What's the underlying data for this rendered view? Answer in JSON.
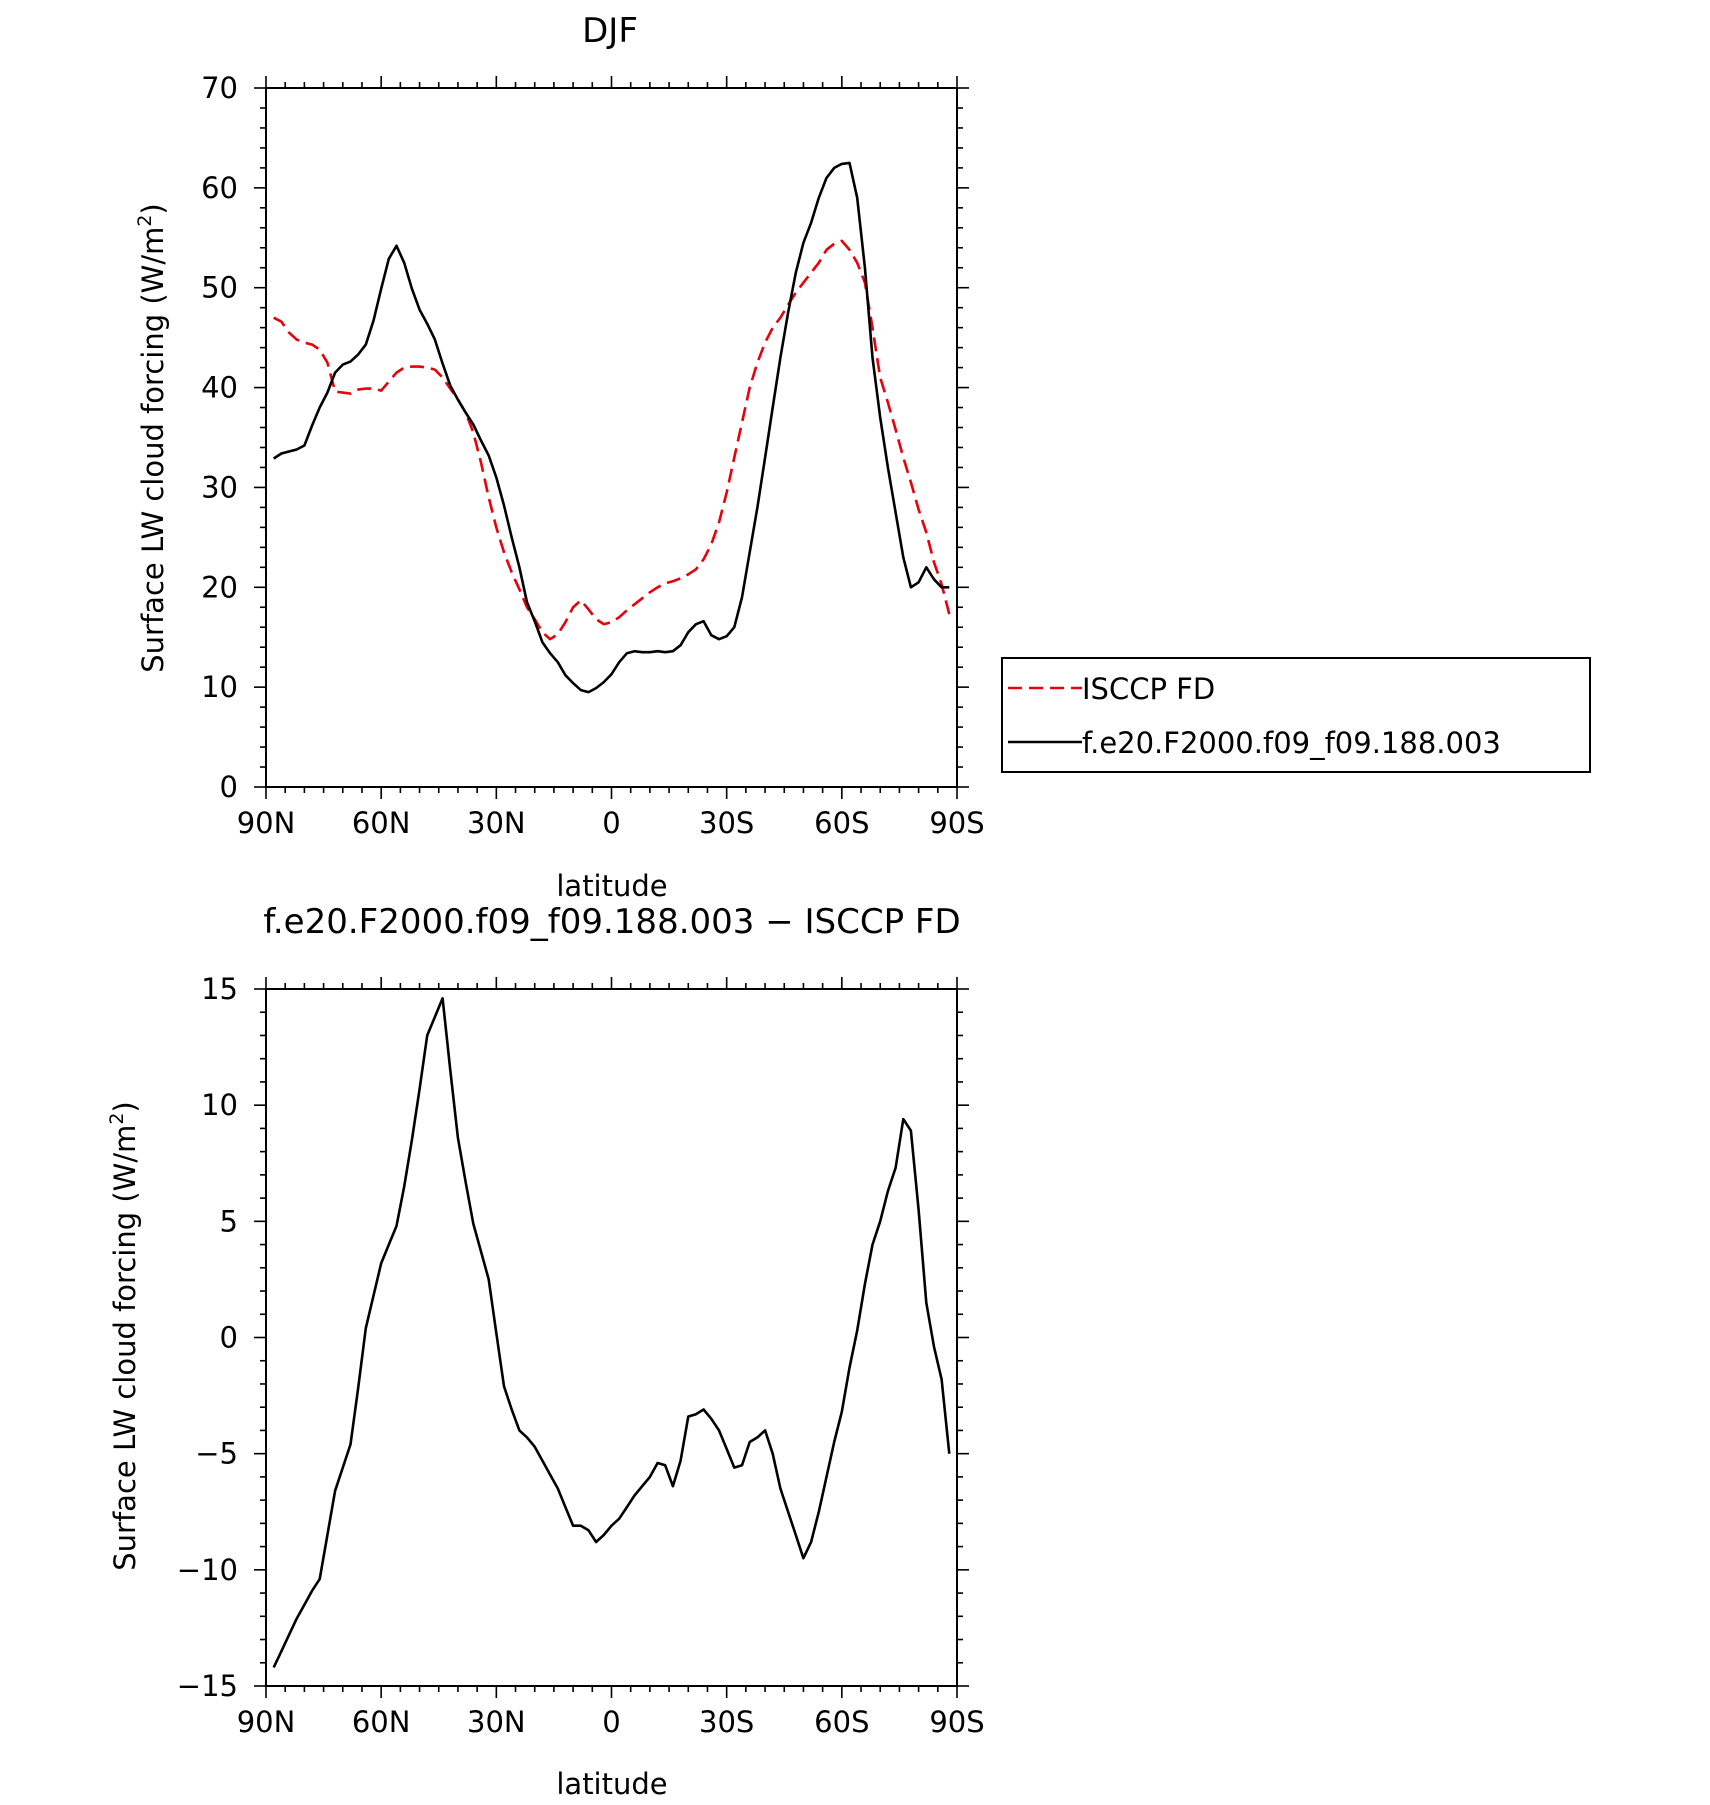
{
  "chart_data": [
    {
      "type": "line",
      "title": "DJF",
      "xlabel": "latitude",
      "ylabel": "Surface LW cloud forcing (W/m²)",
      "ylabel_main": "Surface LW cloud forcing (W/m",
      "ylabel_sup": "2",
      "ylabel_end": ")",
      "xticks": [
        "90N",
        "60N",
        "30N",
        "0",
        "30S",
        "60S",
        "90S"
      ],
      "xtick_values": [
        90,
        60,
        30,
        0,
        -30,
        -60,
        -90
      ],
      "xlim": [
        90,
        -90
      ],
      "ylim": [
        0,
        70
      ],
      "yticks": [
        0,
        10,
        20,
        30,
        40,
        50,
        60,
        70
      ],
      "legend_placement": "right",
      "series": [
        {
          "name": "ISCCP FD",
          "color": "#e8000b",
          "dash": "dashed",
          "x": [
            88,
            86,
            84,
            82,
            80,
            78,
            76,
            74,
            72,
            70,
            68,
            66,
            64,
            62,
            60,
            58,
            56,
            54,
            52,
            50,
            48,
            46,
            44,
            42,
            40,
            38,
            36,
            34,
            32,
            30,
            28,
            26,
            24,
            22,
            20,
            18,
            16,
            14,
            12,
            10,
            8,
            6,
            4,
            2,
            0,
            -2,
            -4,
            -6,
            -8,
            -10,
            -12,
            -14,
            -16,
            -18,
            -20,
            -22,
            -24,
            -26,
            -28,
            -30,
            -32,
            -34,
            -36,
            -38,
            -40,
            -42,
            -44,
            -46,
            -48,
            -50,
            -52,
            -54,
            -56,
            -58,
            -60,
            -62,
            -64,
            -66,
            -68,
            -70,
            -72,
            -74,
            -76,
            -78,
            -80,
            -82,
            -84,
            -86,
            -88
          ],
          "y": [
            47.0,
            46.6,
            45.5,
            44.8,
            44.5,
            44.3,
            43.8,
            42.5,
            39.6,
            39.5,
            39.4,
            39.8,
            39.9,
            39.9,
            39.7,
            40.6,
            41.5,
            42.0,
            42.1,
            42.1,
            42.0,
            41.8,
            41.0,
            39.9,
            38.8,
            37.5,
            35.5,
            32.5,
            29.0,
            26.0,
            23.5,
            21.5,
            19.8,
            18.0,
            16.8,
            15.5,
            14.8,
            15.3,
            16.5,
            18.0,
            18.7,
            17.8,
            16.8,
            16.3,
            16.5,
            17.0,
            17.7,
            18.3,
            18.9,
            19.5,
            20.0,
            20.4,
            20.6,
            20.9,
            21.3,
            21.8,
            22.8,
            24.3,
            26.5,
            29.5,
            33.0,
            36.5,
            40.0,
            42.5,
            44.5,
            46.0,
            47.0,
            48.3,
            49.5,
            50.5,
            51.5,
            52.5,
            53.8,
            54.4,
            54.7,
            53.8,
            52.5,
            50.5,
            46.0,
            41.0,
            38.5,
            35.8,
            33.0,
            30.5,
            27.8,
            25.5,
            22.5,
            20.3,
            17.3
          ]
        },
        {
          "name": "f.e20.F2000.f09_f09.188.003",
          "color": "#000000",
          "dash": "solid",
          "x": [
            88,
            86,
            84,
            82,
            80,
            78,
            76,
            74,
            72,
            70,
            68,
            66,
            64,
            62,
            60,
            58,
            56,
            54,
            52,
            50,
            48,
            46,
            44,
            42,
            40,
            38,
            36,
            34,
            32,
            30,
            28,
            26,
            24,
            22,
            20,
            18,
            16,
            14,
            12,
            10,
            8,
            6,
            4,
            2,
            0,
            -2,
            -4,
            -6,
            -8,
            -10,
            -12,
            -14,
            -16,
            -18,
            -20,
            -22,
            -24,
            -26,
            -28,
            -30,
            -32,
            -34,
            -36,
            -38,
            -40,
            -42,
            -44,
            -46,
            -48,
            -50,
            -52,
            -54,
            -56,
            -58,
            -60,
            -62,
            -64,
            -66,
            -68,
            -70,
            -72,
            -74,
            -76,
            -78,
            -80,
            -82,
            -84,
            -86,
            -88
          ],
          "y": [
            32.9,
            33.4,
            33.6,
            33.8,
            34.2,
            36.2,
            38.0,
            39.5,
            41.5,
            42.3,
            42.6,
            43.3,
            44.3,
            46.7,
            49.9,
            52.9,
            54.2,
            52.5,
            49.9,
            47.8,
            46.4,
            44.8,
            42.4,
            40.2,
            38.8,
            37.5,
            36.3,
            34.7,
            33.2,
            31.0,
            28.2,
            25.0,
            22.0,
            18.5,
            16.6,
            14.5,
            13.4,
            12.5,
            11.2,
            10.4,
            9.7,
            9.5,
            9.9,
            10.5,
            11.3,
            12.5,
            13.4,
            13.6,
            13.5,
            13.5,
            13.6,
            13.5,
            13.6,
            14.2,
            15.5,
            16.3,
            16.6,
            15.2,
            14.8,
            15.1,
            16.0,
            19.0,
            23.5,
            28.0,
            33.0,
            38.0,
            43.0,
            47.5,
            51.5,
            54.5,
            56.5,
            59.0,
            61.0,
            62.0,
            62.4,
            62.5,
            59.0,
            52.0,
            43.0,
            37.0,
            32.0,
            27.5,
            23.0,
            20.0,
            20.5,
            22.0,
            20.8,
            20.0,
            20.0
          ]
        }
      ]
    },
    {
      "type": "line",
      "title": "f.e20.F2000.f09_f09.188.003 − ISCCP FD",
      "xlabel": "latitude",
      "ylabel": "Surface LW cloud forcing (W/m²)",
      "ylabel_main": "Surface LW cloud forcing (W/m",
      "ylabel_sup": "2",
      "ylabel_end": ")",
      "xticks": [
        "90N",
        "60N",
        "30N",
        "0",
        "30S",
        "60S",
        "90S"
      ],
      "xtick_values": [
        90,
        60,
        30,
        0,
        -30,
        -60,
        -90
      ],
      "xlim": [
        90,
        -90
      ],
      "ylim": [
        -15,
        15
      ],
      "yticks": [
        -15,
        -10,
        -5,
        0,
        5,
        10,
        15
      ],
      "ytick_labels": [
        "−15",
        "−10",
        "−5",
        "0",
        "5",
        "10",
        "15"
      ],
      "series": [
        {
          "color": "#000000",
          "dash": "solid",
          "x": [
            88,
            86,
            84,
            82,
            80,
            78,
            76,
            74,
            72,
            70,
            68,
            66,
            64,
            62,
            60,
            58,
            56,
            54,
            52,
            50,
            48,
            46,
            44,
            42,
            40,
            38,
            36,
            34,
            32,
            30,
            28,
            26,
            24,
            22,
            20,
            18,
            16,
            14,
            12,
            10,
            8,
            6,
            4,
            2,
            0,
            -2,
            -4,
            -6,
            -8,
            -10,
            -12,
            -14,
            -16,
            -18,
            -20,
            -22,
            -24,
            -26,
            -28,
            -30,
            -32,
            -34,
            -36,
            -38,
            -40,
            -42,
            -44,
            -46,
            -48,
            -50,
            -52,
            -54,
            -56,
            -58,
            -60,
            -62,
            -64,
            -66,
            -68,
            -70,
            -72,
            -74,
            -76,
            -78,
            -80,
            -82,
            -84,
            -86,
            -88
          ],
          "y": [
            -14.2,
            -13.5,
            -12.8,
            -12.1,
            -11.5,
            -10.9,
            -10.4,
            -8.5,
            -6.6,
            -5.6,
            -4.6,
            -2.2,
            0.4,
            1.8,
            3.2,
            4.0,
            4.8,
            6.5,
            8.5,
            10.7,
            13.0,
            13.8,
            14.6,
            11.5,
            8.6,
            6.7,
            4.9,
            3.7,
            2.5,
            0.2,
            -2.1,
            -3.1,
            -4.0,
            -4.3,
            -4.7,
            -5.3,
            -5.9,
            -6.5,
            -7.3,
            -8.1,
            -8.1,
            -8.3,
            -8.8,
            -8.5,
            -8.1,
            -7.8,
            -7.3,
            -6.8,
            -6.4,
            -6.0,
            -5.4,
            -5.5,
            -6.4,
            -5.3,
            -3.4,
            -3.3,
            -3.1,
            -3.5,
            -4.0,
            -4.8,
            -5.6,
            -5.5,
            -4.5,
            -4.3,
            -4.0,
            -5.0,
            -6.5,
            -7.5,
            -8.5,
            -9.5,
            -8.8,
            -7.5,
            -6.0,
            -4.5,
            -3.2,
            -1.3,
            0.3,
            2.3,
            4.0,
            5.0,
            6.3,
            7.3,
            9.4,
            8.9,
            5.5,
            1.5,
            -0.4,
            -1.8,
            -5.0
          ]
        }
      ]
    }
  ]
}
